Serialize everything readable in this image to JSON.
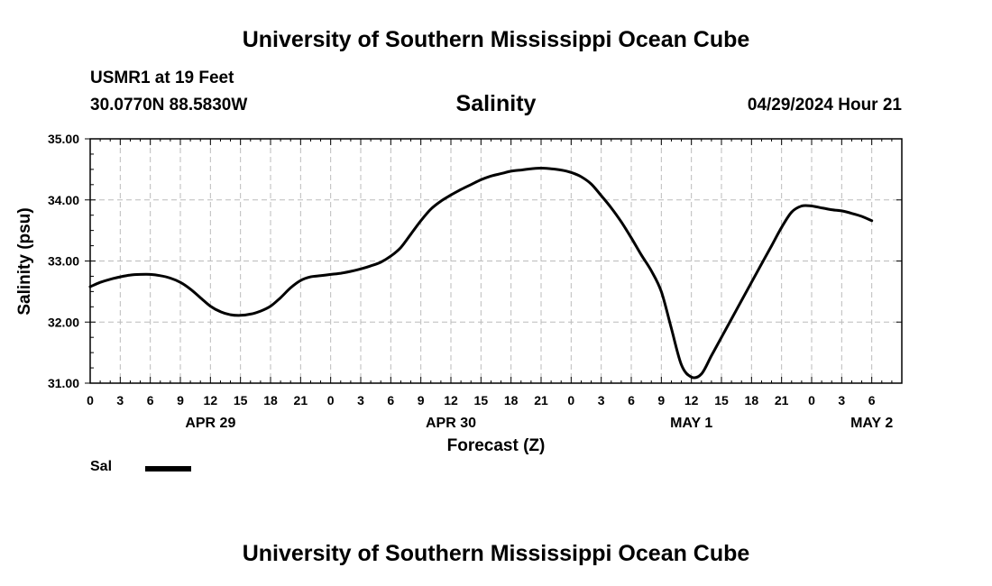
{
  "header": {
    "title": "University of Southern Mississippi Ocean Cube",
    "station": "USMR1 at 19 Feet",
    "coords": "30.0770N  88.5830W",
    "datetime": "04/29/2024 Hour 21"
  },
  "footer": {
    "title": "University of Southern Mississippi Ocean Cube"
  },
  "legend": {
    "label": "Sal",
    "icon": "legend-line-icon"
  },
  "colors": {
    "line": "#000000",
    "grid": "#bbbbbb",
    "background": "#ffffff"
  },
  "chart_data": {
    "type": "line",
    "title": "Salinity",
    "xlabel": "Forecast (Z)",
    "ylabel": "Salinity (psu)",
    "ylim": [
      31.0,
      35.0
    ],
    "xlim": [
      0,
      81
    ],
    "x_unit": "hours since 2024-04-29 00Z",
    "y_ticks": [
      "31.00",
      "32.00",
      "33.00",
      "34.00",
      "35.00"
    ],
    "y_tick_values": [
      31,
      32,
      33,
      34,
      35
    ],
    "x_ticks": [
      "0",
      "3",
      "6",
      "9",
      "12",
      "15",
      "18",
      "21",
      "0",
      "3",
      "6",
      "9",
      "12",
      "15",
      "18",
      "21",
      "0",
      "3",
      "6",
      "9",
      "12",
      "15",
      "18",
      "21",
      "0",
      "3",
      "6"
    ],
    "x_tick_hours": [
      0,
      3,
      6,
      9,
      12,
      15,
      18,
      21,
      24,
      27,
      30,
      33,
      36,
      39,
      42,
      45,
      48,
      51,
      54,
      57,
      60,
      63,
      66,
      69,
      72,
      75,
      78
    ],
    "day_labels": [
      {
        "label": "APR 29",
        "hour": 12
      },
      {
        "label": "APR 30",
        "hour": 36
      },
      {
        "label": "MAY 1",
        "hour": 60
      },
      {
        "label": "MAY 2",
        "hour": 78
      }
    ],
    "grid": true,
    "series": [
      {
        "name": "Sal",
        "x": [
          0,
          1,
          2,
          3,
          4,
          5,
          6,
          7,
          8,
          9,
          10,
          11,
          12,
          13,
          14,
          15,
          16,
          17,
          18,
          19,
          20,
          21,
          22,
          23,
          24,
          25,
          26,
          27,
          28,
          29,
          30,
          31,
          32,
          33,
          34,
          35,
          36,
          37,
          38,
          39,
          40,
          41,
          42,
          43,
          44,
          45,
          46,
          47,
          48,
          49,
          50,
          51,
          52,
          53,
          54,
          55,
          56,
          57,
          58,
          59,
          60,
          61,
          62,
          63,
          64,
          65,
          66,
          67,
          68,
          69,
          70,
          71,
          72,
          73,
          74,
          75,
          76,
          77,
          78
        ],
        "values": [
          32.58,
          32.65,
          32.7,
          32.74,
          32.77,
          32.78,
          32.78,
          32.76,
          32.72,
          32.65,
          32.54,
          32.4,
          32.26,
          32.17,
          32.12,
          32.11,
          32.13,
          32.18,
          32.26,
          32.4,
          32.56,
          32.68,
          32.74,
          32.76,
          32.78,
          32.8,
          32.83,
          32.87,
          32.92,
          32.98,
          33.08,
          33.22,
          33.44,
          33.66,
          33.85,
          33.98,
          34.08,
          34.17,
          34.25,
          34.33,
          34.39,
          34.43,
          34.47,
          34.49,
          34.51,
          34.52,
          34.51,
          34.49,
          34.45,
          34.38,
          34.26,
          34.07,
          33.87,
          33.64,
          33.38,
          33.1,
          32.84,
          32.5,
          31.9,
          31.3,
          31.1,
          31.15,
          31.45,
          31.75,
          32.05,
          32.35,
          32.65,
          32.95,
          33.25,
          33.55,
          33.8,
          33.9,
          33.9,
          33.87,
          33.84,
          33.82,
          33.78,
          33.73,
          33.66
        ]
      }
    ]
  }
}
